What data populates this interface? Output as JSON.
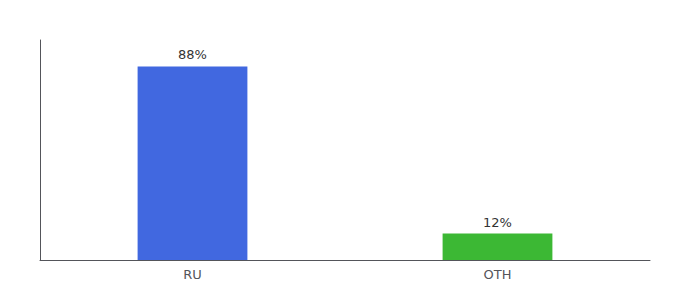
{
  "chart_data": {
    "type": "bar",
    "categories": [
      "RU",
      "OTH"
    ],
    "values": [
      88,
      12
    ],
    "value_labels": [
      "88%",
      "12%"
    ],
    "colors": [
      "#4168e0",
      "#3cb834"
    ],
    "ylim": [
      0,
      100
    ],
    "yticks": [],
    "data_labels": true,
    "tick_labels": "x",
    "grid": false
  }
}
